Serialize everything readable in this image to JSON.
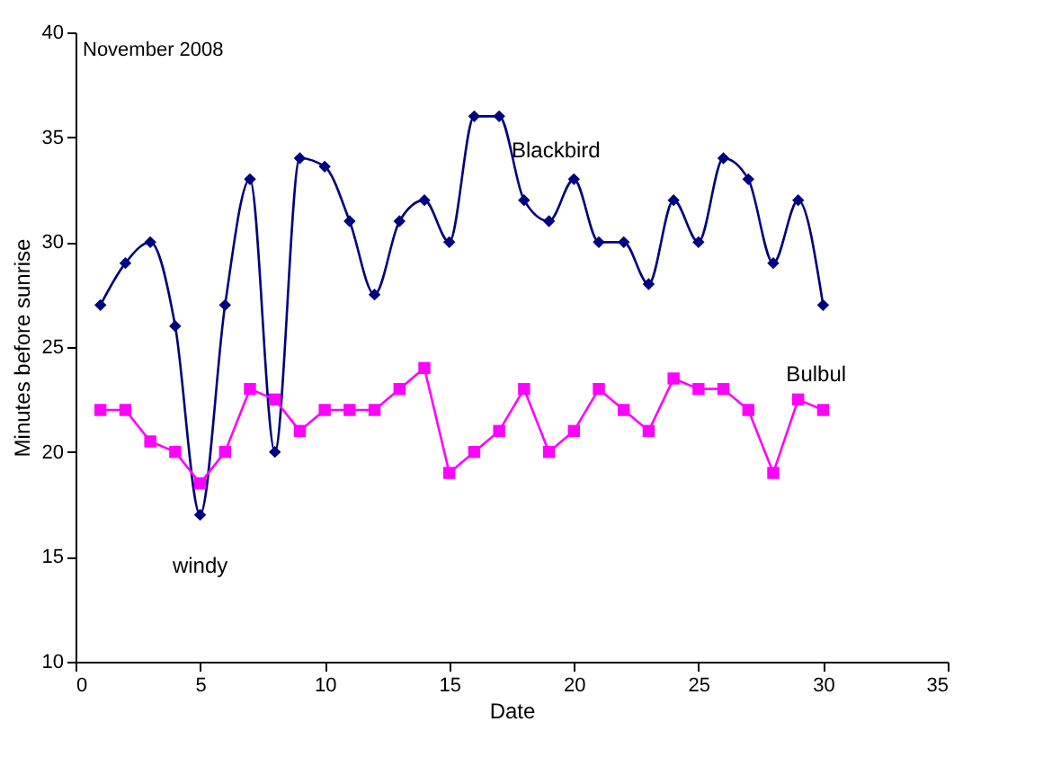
{
  "chart_data": {
    "type": "line",
    "xlabel": "Date",
    "ylabel": "Minutes before sunrise",
    "annotations": [
      "November 2008",
      {
        "text": "windy",
        "x": 5,
        "y": 17
      }
    ],
    "x": [
      1,
      2,
      3,
      4,
      5,
      6,
      7,
      8,
      9,
      10,
      11,
      12,
      13,
      14,
      15,
      16,
      17,
      18,
      19,
      20,
      21,
      22,
      23,
      24,
      25,
      26,
      27,
      28,
      29,
      30
    ],
    "series": [
      {
        "name": "Blackbird",
        "color": "#000080",
        "marker": "diamond",
        "values": [
          27,
          29,
          30,
          26,
          17,
          27,
          33,
          20,
          34,
          33.6,
          31,
          27.5,
          31,
          32,
          30,
          36,
          36,
          32,
          31,
          33,
          30,
          30,
          28,
          32,
          30,
          34,
          33,
          29,
          32,
          27
        ]
      },
      {
        "name": "Bulbul",
        "color": "#ff00ff",
        "marker": "square",
        "values": [
          22,
          22,
          20.5,
          20,
          18.5,
          20,
          23,
          22.5,
          21,
          22,
          22,
          22,
          23,
          24,
          19,
          20,
          21,
          23,
          20,
          21,
          23,
          22,
          21,
          23.5,
          23,
          23,
          22,
          19,
          22.5,
          22
        ]
      }
    ],
    "xlim": [
      0,
      35
    ],
    "xticks": [
      0,
      5,
      10,
      15,
      20,
      25,
      30,
      35
    ],
    "ylim": [
      10,
      40
    ],
    "yticks": [
      10,
      15,
      20,
      25,
      30,
      35,
      40
    ],
    "grid": false,
    "line_style": "solid"
  }
}
